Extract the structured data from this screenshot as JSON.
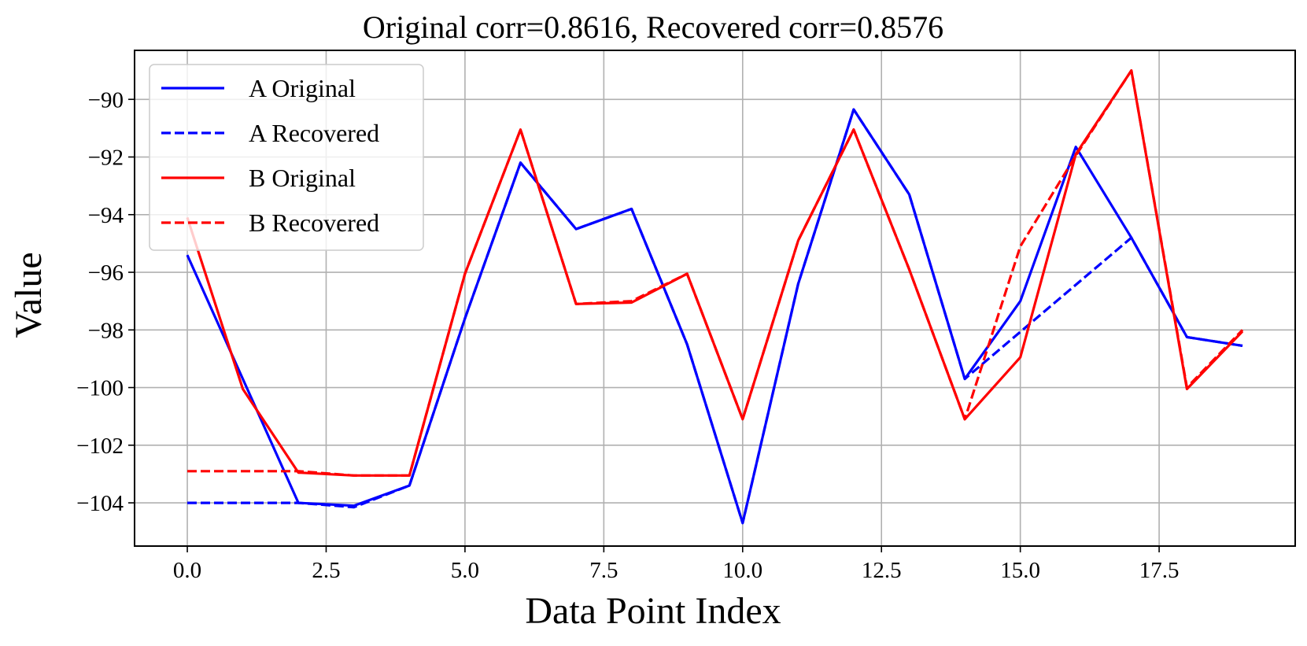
{
  "chart_data": {
    "type": "line",
    "title": "Original corr=0.8616, Recovered corr=0.8576",
    "xlabel": "Data Point Index",
    "ylabel": "Value",
    "xlim": [
      -0.95,
      19.95
    ],
    "ylim": [
      -105.5,
      -88.3
    ],
    "xticks": [
      0.0,
      2.5,
      5.0,
      7.5,
      10.0,
      12.5,
      15.0,
      17.5
    ],
    "xtick_labels": [
      "0.0",
      "2.5",
      "5.0",
      "7.5",
      "10.0",
      "12.5",
      "15.0",
      "17.5"
    ],
    "yticks": [
      -104,
      -102,
      -100,
      -98,
      -96,
      -94,
      -92,
      -90
    ],
    "ytick_labels": [
      "−104",
      "−102",
      "−100",
      "−98",
      "−96",
      "−94",
      "−92",
      "−90"
    ],
    "grid": true,
    "legend_position": "top-left",
    "series": [
      {
        "name": "A Original",
        "color": "#0000ff",
        "style": "solid",
        "x": [
          0,
          1,
          2,
          3,
          4,
          5,
          6,
          7,
          8,
          9,
          10,
          11,
          12,
          13,
          14,
          15,
          16,
          17,
          18,
          19
        ],
        "y": [
          -95.4,
          -99.7,
          -104.0,
          -104.1,
          -103.4,
          -97.6,
          -92.2,
          -94.5,
          -93.8,
          -98.5,
          -104.7,
          -96.4,
          -90.35,
          -93.3,
          -99.7,
          -97.0,
          -91.65,
          -94.8,
          -98.25,
          -98.55
        ]
      },
      {
        "name": "A Recovered",
        "color": "#0000ff",
        "style": "dashed",
        "x": [
          0,
          1,
          2,
          3,
          4,
          5,
          6,
          7,
          8,
          9,
          10,
          11,
          12,
          13,
          14,
          17,
          18,
          19
        ],
        "y": [
          -104.0,
          -104.0,
          -104.0,
          -104.15,
          -103.4,
          -97.6,
          -92.2,
          -94.5,
          -93.8,
          -98.5,
          -104.7,
          -96.4,
          -90.35,
          -93.3,
          -99.7,
          -94.8,
          -98.25,
          -98.55
        ]
      },
      {
        "name": "B Original",
        "color": "#ff0000",
        "style": "solid",
        "x": [
          0,
          1,
          2,
          3,
          4,
          5,
          6,
          7,
          8,
          9,
          10,
          11,
          12,
          13,
          14,
          15,
          16,
          17,
          18,
          19
        ],
        "y": [
          -94.1,
          -100.05,
          -102.95,
          -103.05,
          -103.05,
          -96.05,
          -91.05,
          -97.1,
          -97.05,
          -96.05,
          -101.1,
          -94.9,
          -91.05,
          -95.9,
          -101.1,
          -98.95,
          -91.9,
          -89.0,
          -100.05,
          -98.05
        ]
      },
      {
        "name": "B Recovered",
        "color": "#ff0000",
        "style": "dashed",
        "x": [
          0,
          1,
          2,
          3,
          4,
          5,
          6,
          7,
          8,
          9,
          10,
          11,
          12,
          13,
          14,
          15,
          16,
          17,
          18,
          19
        ],
        "y": [
          -102.9,
          -102.9,
          -102.9,
          -103.05,
          -103.05,
          -96.05,
          -91.05,
          -97.1,
          -97.0,
          -96.05,
          -101.1,
          -94.9,
          -91.05,
          -95.9,
          -101.1,
          -95.1,
          -91.95,
          -89.0,
          -100.0,
          -98.0
        ]
      }
    ]
  }
}
